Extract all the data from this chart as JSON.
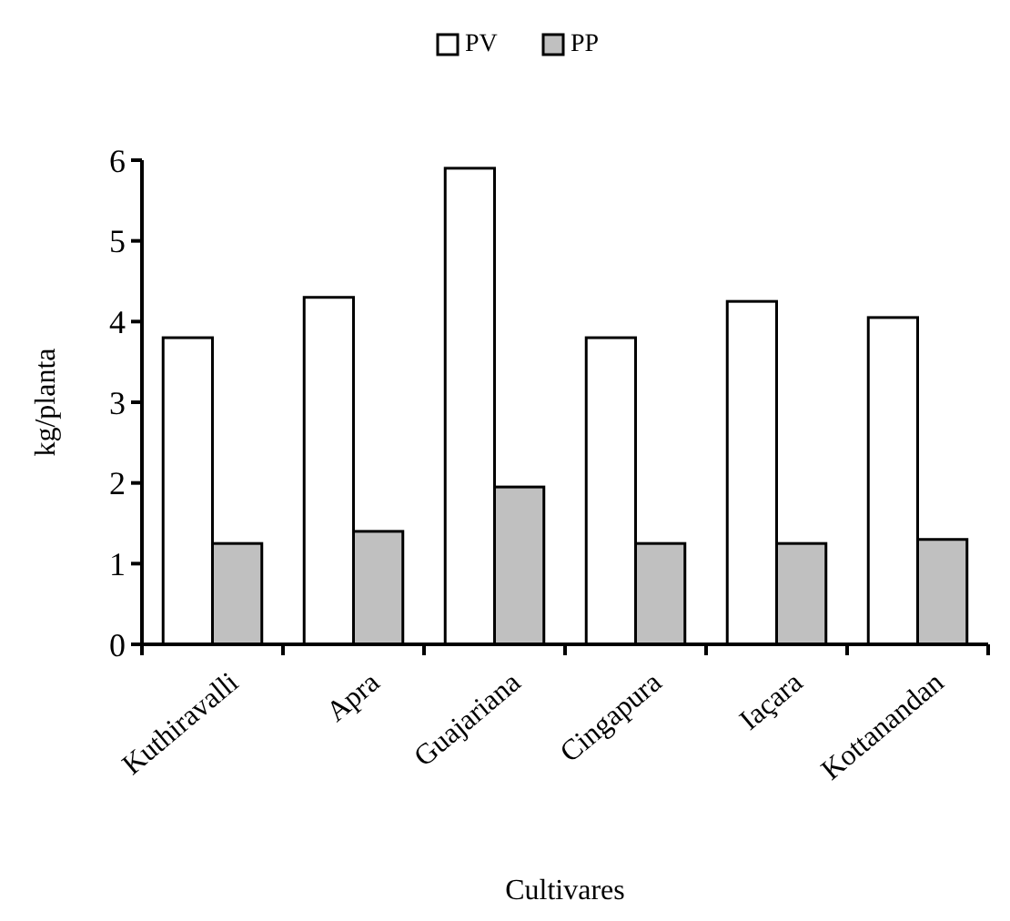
{
  "chart_data": {
    "type": "bar",
    "xlabel": "Cultivares",
    "ylabel": "kg/planta",
    "categories": [
      "Kuthiravalli",
      "Apra",
      "Guajariana",
      "Cingapura",
      "Iaçara",
      "Kottanandan"
    ],
    "series": [
      {
        "name": "PV",
        "color": "#ffffff",
        "values": [
          3.8,
          4.3,
          5.9,
          3.8,
          4.25,
          4.05
        ]
      },
      {
        "name": "PP",
        "color": "#c0c0c0",
        "values": [
          1.25,
          1.4,
          1.95,
          1.25,
          1.25,
          1.3
        ]
      }
    ],
    "ylim": [
      0,
      6
    ],
    "yticks": [
      0,
      1,
      2,
      3,
      4,
      5,
      6
    ],
    "grid": false,
    "legend": "top"
  }
}
